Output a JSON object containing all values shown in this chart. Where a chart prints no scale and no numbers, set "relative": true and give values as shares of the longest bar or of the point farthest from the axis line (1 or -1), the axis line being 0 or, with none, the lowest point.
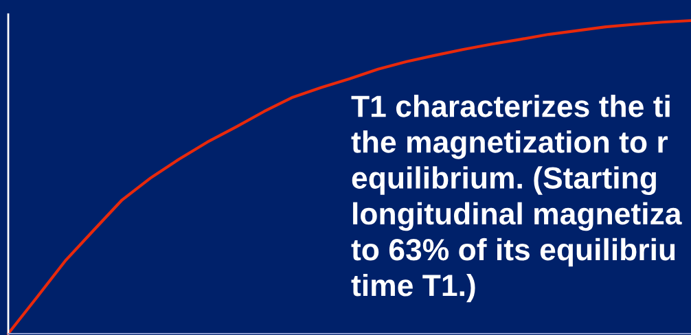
{
  "chart_data": {
    "type": "line",
    "relative": true,
    "categories": [
      null,
      null,
      null,
      null,
      null,
      null,
      null,
      null,
      null,
      null,
      null,
      null,
      null,
      null,
      null,
      null,
      null,
      null,
      null,
      null,
      null,
      null,
      null,
      null,
      null
    ],
    "series": [
      {
        "color": "#e8290b",
        "values": [
          0,
          0.115,
          0.232,
          0.33,
          0.427,
          0.497,
          0.557,
          0.612,
          0.66,
          0.71,
          0.755,
          0.786,
          0.814,
          0.845,
          0.869,
          0.889,
          0.908,
          0.925,
          0.94,
          0.956,
          0.968,
          0.98,
          0.988,
          0.995,
          1.0
        ]
      }
    ],
    "annotations": [
      "T1 characterizes the ti\nthe magnetization to r\nequilibrium. (Starting\nlongitudinal magnetiza\nto 63% of its equilibriu\ntime T1.)"
    ],
    "legend": false
  }
}
